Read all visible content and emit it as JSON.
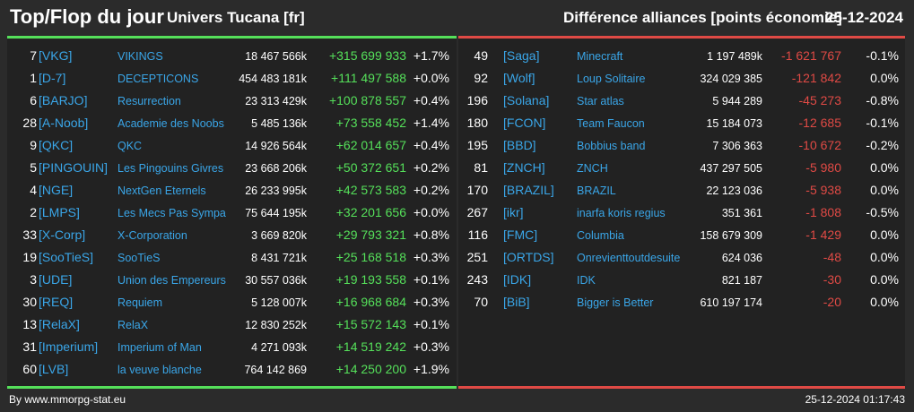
{
  "header": {
    "title": "Top/Flop du jour",
    "universe": "Univers Tucana [fr]",
    "subtitle": "Différence alliances [points économie]",
    "date": "25-12-2024"
  },
  "colors": {
    "background": "#2b2b2b",
    "panel": "#222222",
    "top_accent": "#55e05a",
    "flop_accent": "#e04a45",
    "link": "#3aa6e8"
  },
  "top": [
    {
      "rank": "7",
      "tag": "[VKG]",
      "name": "VIKINGS",
      "points": "18 467 566k",
      "diff": "+315 699 933",
      "pct": "+1.7%"
    },
    {
      "rank": "1",
      "tag": "[D-7]",
      "name": "DECEPTICONS",
      "points": "454 483 181k",
      "diff": "+111 497 588",
      "pct": "+0.0%"
    },
    {
      "rank": "6",
      "tag": "[BARJO]",
      "name": "Resurrection",
      "points": "23 313 429k",
      "diff": "+100 878 557",
      "pct": "+0.4%"
    },
    {
      "rank": "28",
      "tag": "[A-Noob]",
      "name": "Academie des Noobs",
      "points": "5 485 136k",
      "diff": "+73 558 452",
      "pct": "+1.4%"
    },
    {
      "rank": "9",
      "tag": "[QKC]",
      "name": "QKC",
      "points": "14 926 564k",
      "diff": "+62 014 657",
      "pct": "+0.4%"
    },
    {
      "rank": "5",
      "tag": "[PINGOUIN]",
      "name": "Les Pingouins Givres",
      "points": "23 668 206k",
      "diff": "+50 372 651",
      "pct": "+0.2%"
    },
    {
      "rank": "4",
      "tag": "[NGE]",
      "name": "NextGen Eternels",
      "points": "26 233 995k",
      "diff": "+42 573 583",
      "pct": "+0.2%"
    },
    {
      "rank": "2",
      "tag": "[LMPS]",
      "name": "Les Mecs Pas Sympa",
      "points": "75 644 195k",
      "diff": "+32 201 656",
      "pct": "+0.0%"
    },
    {
      "rank": "33",
      "tag": "[X-Corp]",
      "name": "X-Corporation",
      "points": "3 669 820k",
      "diff": "+29 793 321",
      "pct": "+0.8%"
    },
    {
      "rank": "19",
      "tag": "[SooTieS]",
      "name": "SooTieS",
      "points": "8 431 721k",
      "diff": "+25 168 518",
      "pct": "+0.3%"
    },
    {
      "rank": "3",
      "tag": "[UDE]",
      "name": "Union des Empereurs",
      "points": "30 557 036k",
      "diff": "+19 193 558",
      "pct": "+0.1%"
    },
    {
      "rank": "30",
      "tag": "[REQ]",
      "name": "Requiem",
      "points": "5 128 007k",
      "diff": "+16 968 684",
      "pct": "+0.3%"
    },
    {
      "rank": "13",
      "tag": "[RelaX]",
      "name": "RelaX",
      "points": "12 830 252k",
      "diff": "+15 572 143",
      "pct": "+0.1%"
    },
    {
      "rank": "31",
      "tag": "[Imperium]",
      "name": "Imperium of Man",
      "points": "4 271 093k",
      "diff": "+14 519 242",
      "pct": "+0.3%"
    },
    {
      "rank": "60",
      "tag": "[LVB]",
      "name": "la veuve blanche",
      "points": "764 142 869",
      "diff": "+14 250 200",
      "pct": "+1.9%"
    }
  ],
  "flop": [
    {
      "rank": "49",
      "tag": "[Saga]",
      "name": "Minecraft",
      "points": "1 197 489k",
      "diff": "-1 621 767",
      "pct": "-0.1%"
    },
    {
      "rank": "92",
      "tag": "[Wolf]",
      "name": "Loup Solitaire",
      "points": "324 029 385",
      "diff": "-121 842",
      "pct": "0.0%"
    },
    {
      "rank": "196",
      "tag": "[Solana]",
      "name": "Star atlas",
      "points": "5 944 289",
      "diff": "-45 273",
      "pct": "-0.8%"
    },
    {
      "rank": "180",
      "tag": "[FCON]",
      "name": "Team Faucon",
      "points": "15 184 073",
      "diff": "-12 685",
      "pct": "-0.1%"
    },
    {
      "rank": "195",
      "tag": "[BBD]",
      "name": "Bobbius band",
      "points": "7 306 363",
      "diff": "-10 672",
      "pct": "-0.2%"
    },
    {
      "rank": "81",
      "tag": "[ZNCH]",
      "name": "ZNCH",
      "points": "437 297 505",
      "diff": "-5 980",
      "pct": "0.0%"
    },
    {
      "rank": "170",
      "tag": "[BRAZIL]",
      "name": "BRAZIL",
      "points": "22 123 036",
      "diff": "-5 938",
      "pct": "0.0%"
    },
    {
      "rank": "267",
      "tag": "[ikr]",
      "name": "inarfa koris regius",
      "points": "351 361",
      "diff": "-1 808",
      "pct": "-0.5%"
    },
    {
      "rank": "116",
      "tag": "[FMC]",
      "name": "Columbia",
      "points": "158 679 309",
      "diff": "-1 429",
      "pct": "0.0%"
    },
    {
      "rank": "251",
      "tag": "[ORTDS]",
      "name": "Onrevienttoutdesuite",
      "points": "624 036",
      "diff": "-48",
      "pct": "0.0%"
    },
    {
      "rank": "243",
      "tag": "[IDK]",
      "name": "IDK",
      "points": "821 187",
      "diff": "-30",
      "pct": "0.0%"
    },
    {
      "rank": "70",
      "tag": "[BiB]",
      "name": "Bigger is Better",
      "points": "610 197 174",
      "diff": "-20",
      "pct": "0.0%"
    }
  ],
  "footer": {
    "credit": "By www.mmorpg-stat.eu",
    "timestamp": "25-12-2024 01:17:43"
  }
}
